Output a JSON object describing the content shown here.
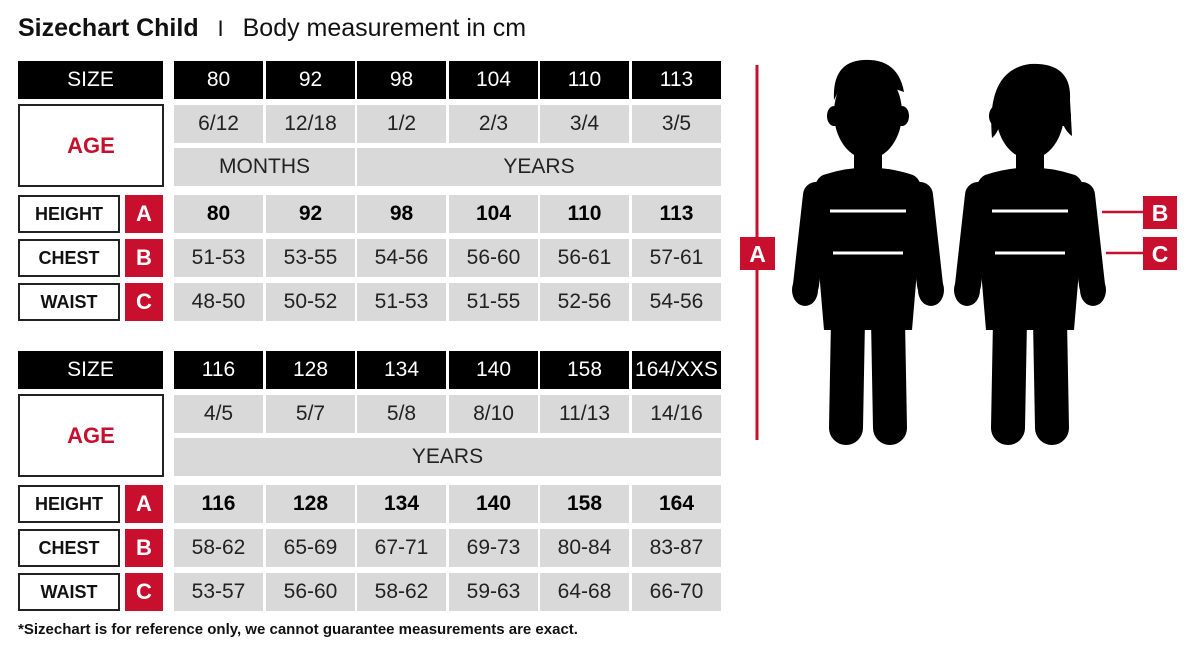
{
  "title": {
    "main": "Sizechart Child",
    "separator": "I",
    "subtitle": "Body measurement in cm"
  },
  "labels": {
    "size": "SIZE",
    "age": "AGE",
    "height": "HEIGHT",
    "chest": "CHEST",
    "waist": "WAIST",
    "a": "A",
    "b": "B",
    "c": "C"
  },
  "tables": [
    {
      "sizes": [
        "80",
        "92",
        "98",
        "104",
        "110",
        "113"
      ],
      "ages": [
        "6/12",
        "12/18",
        "1/2",
        "2/3",
        "3/4",
        "3/5"
      ],
      "age_units": [
        {
          "label": "MONTHS",
          "span": 2
        },
        {
          "label": "YEARS",
          "span": 4
        }
      ],
      "height": [
        "80",
        "92",
        "98",
        "104",
        "110",
        "113"
      ],
      "chest": [
        "51-53",
        "53-55",
        "54-56",
        "56-60",
        "56-61",
        "57-61"
      ],
      "waist": [
        "48-50",
        "50-52",
        "51-53",
        "51-55",
        "52-56",
        "54-56"
      ]
    },
    {
      "sizes": [
        "116",
        "128",
        "134",
        "140",
        "158",
        "164/XXS"
      ],
      "ages": [
        "4/5",
        "5/7",
        "5/8",
        "8/10",
        "11/13",
        "14/16"
      ],
      "age_units": [
        {
          "label": "YEARS",
          "span": 6
        }
      ],
      "height": [
        "116",
        "128",
        "134",
        "140",
        "158",
        "164"
      ],
      "chest": [
        "58-62",
        "65-69",
        "67-71",
        "69-73",
        "80-84",
        "83-87"
      ],
      "waist": [
        "53-57",
        "56-60",
        "58-62",
        "59-63",
        "64-68",
        "66-70"
      ]
    }
  ],
  "figure": {
    "icons": [
      "boy-silhouette-icon",
      "girl-silhouette-icon"
    ],
    "marker_a": "A",
    "marker_b": "B",
    "marker_c": "C"
  },
  "colors": {
    "accent": "#c8102e",
    "header": "#000000",
    "cell": "#d9d9d9"
  },
  "footnote": "*Sizechart is for reference only, we cannot guarantee measurements are exact."
}
